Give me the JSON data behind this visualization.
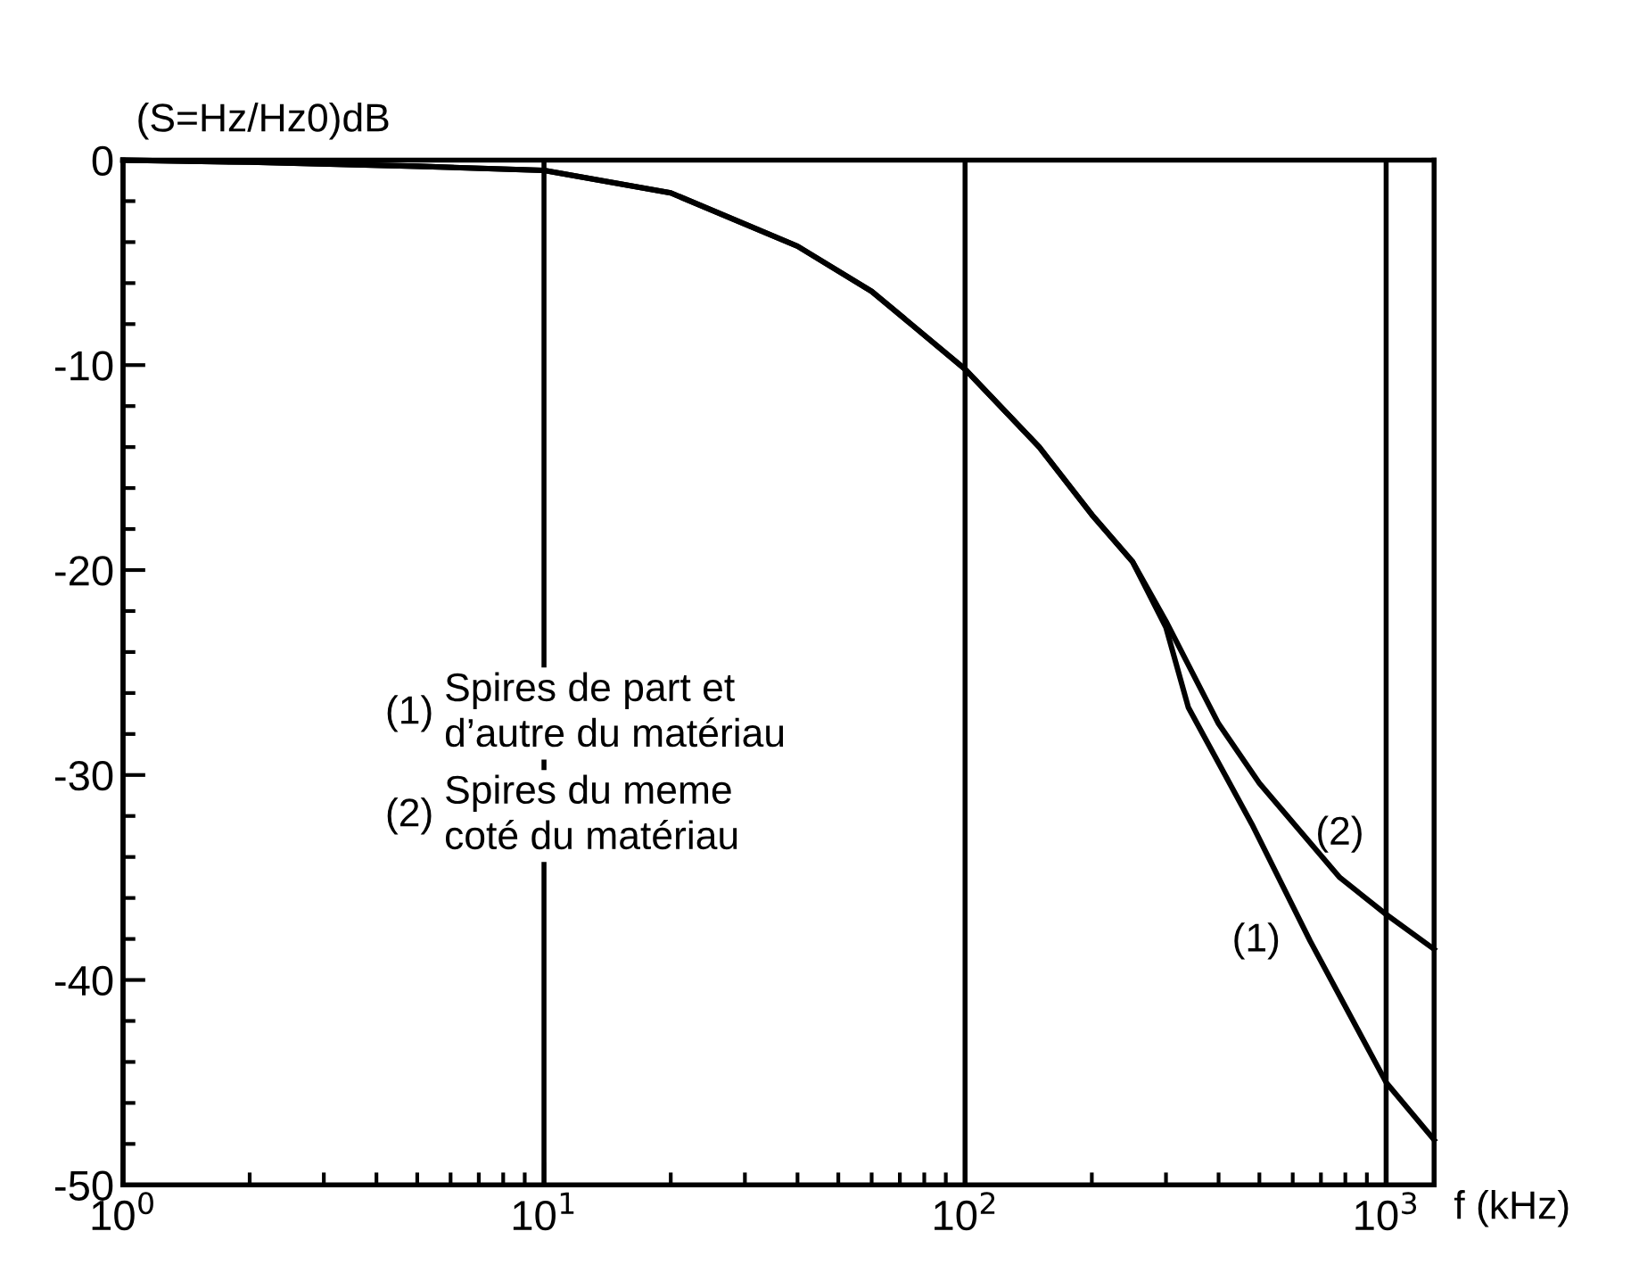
{
  "chart_data": {
    "type": "line",
    "ylabel": "(S=Hz/Hz0)dB",
    "xlabel": "f (kHz)",
    "log": "x",
    "grid": "x",
    "marker": "none",
    "line_style": "solid",
    "xlim": [
      1,
      1300
    ],
    "xticks": [
      {
        "value": 1,
        "label": "10$^{0}$"
      },
      {
        "value": 10,
        "label": "10$^{1}$"
      },
      {
        "value": 100,
        "label": "10$^{2}$"
      },
      {
        "value": 1000,
        "label": "10$^{3}$"
      }
    ],
    "ylim": [
      -50,
      0
    ],
    "yticks": [
      -50,
      -40,
      -30,
      -20,
      -10,
      0
    ],
    "series": [
      {
        "name": "(1)",
        "color": "#000000",
        "x": [
          1,
          2,
          5,
          10,
          20,
          40,
          60,
          100,
          150,
          200,
          250,
          300,
          339,
          480,
          660,
          1000,
          1300
        ],
        "values": [
          0,
          -0.1,
          -0.3,
          -0.5,
          -1.6,
          -4.2,
          -6.4,
          -10.2,
          -14,
          -17.3,
          -19.6,
          -22.8,
          -26.7,
          -32.4,
          -38.1,
          -45,
          -47.8
        ]
      },
      {
        "name": "(2)",
        "color": "#000000",
        "x": [
          1,
          2,
          5,
          10,
          20,
          40,
          60,
          100,
          150,
          200,
          250,
          300,
          400,
          500,
          776,
          1000,
          1300
        ],
        "values": [
          0,
          -0.1,
          -0.3,
          -0.5,
          -1.6,
          -4.2,
          -6.4,
          -10.2,
          -14,
          -17.3,
          -19.6,
          -22.5,
          -27.5,
          -30.4,
          -35,
          -36.8,
          -38.5
        ]
      }
    ],
    "annotations": [
      "(1)",
      "Spires de part et\nd’autre du matériau",
      "(2)",
      "Spires du meme\ncoté du matériau"
    ]
  }
}
